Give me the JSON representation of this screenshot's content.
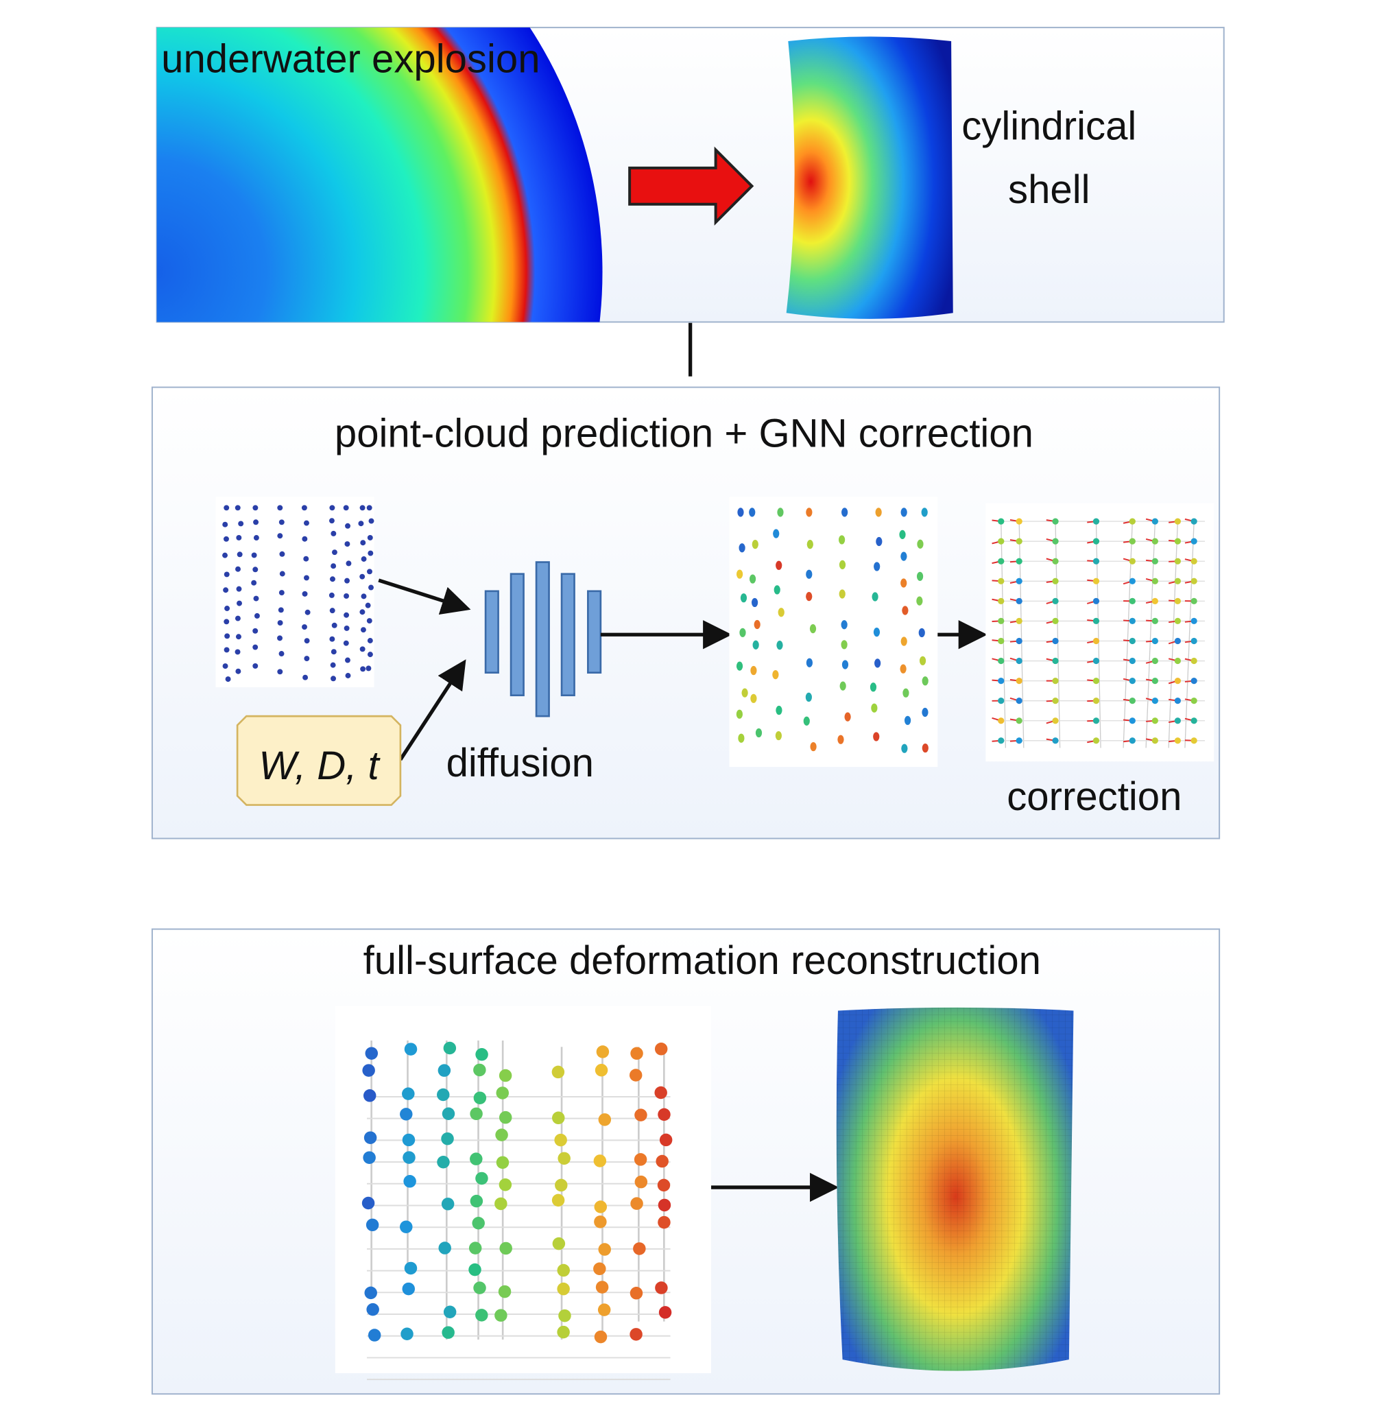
{
  "panels": [
    {
      "left_label": "underwater explosion",
      "right_label_lines": [
        "cylindrical",
        "shell"
      ]
    },
    {
      "title": "point-cloud prediction + GNN correction",
      "input_label": "W, D, t",
      "model_label": "diffusion",
      "output_label": "correction"
    },
    {
      "title": "full-surface deformation reconstruction"
    }
  ]
}
